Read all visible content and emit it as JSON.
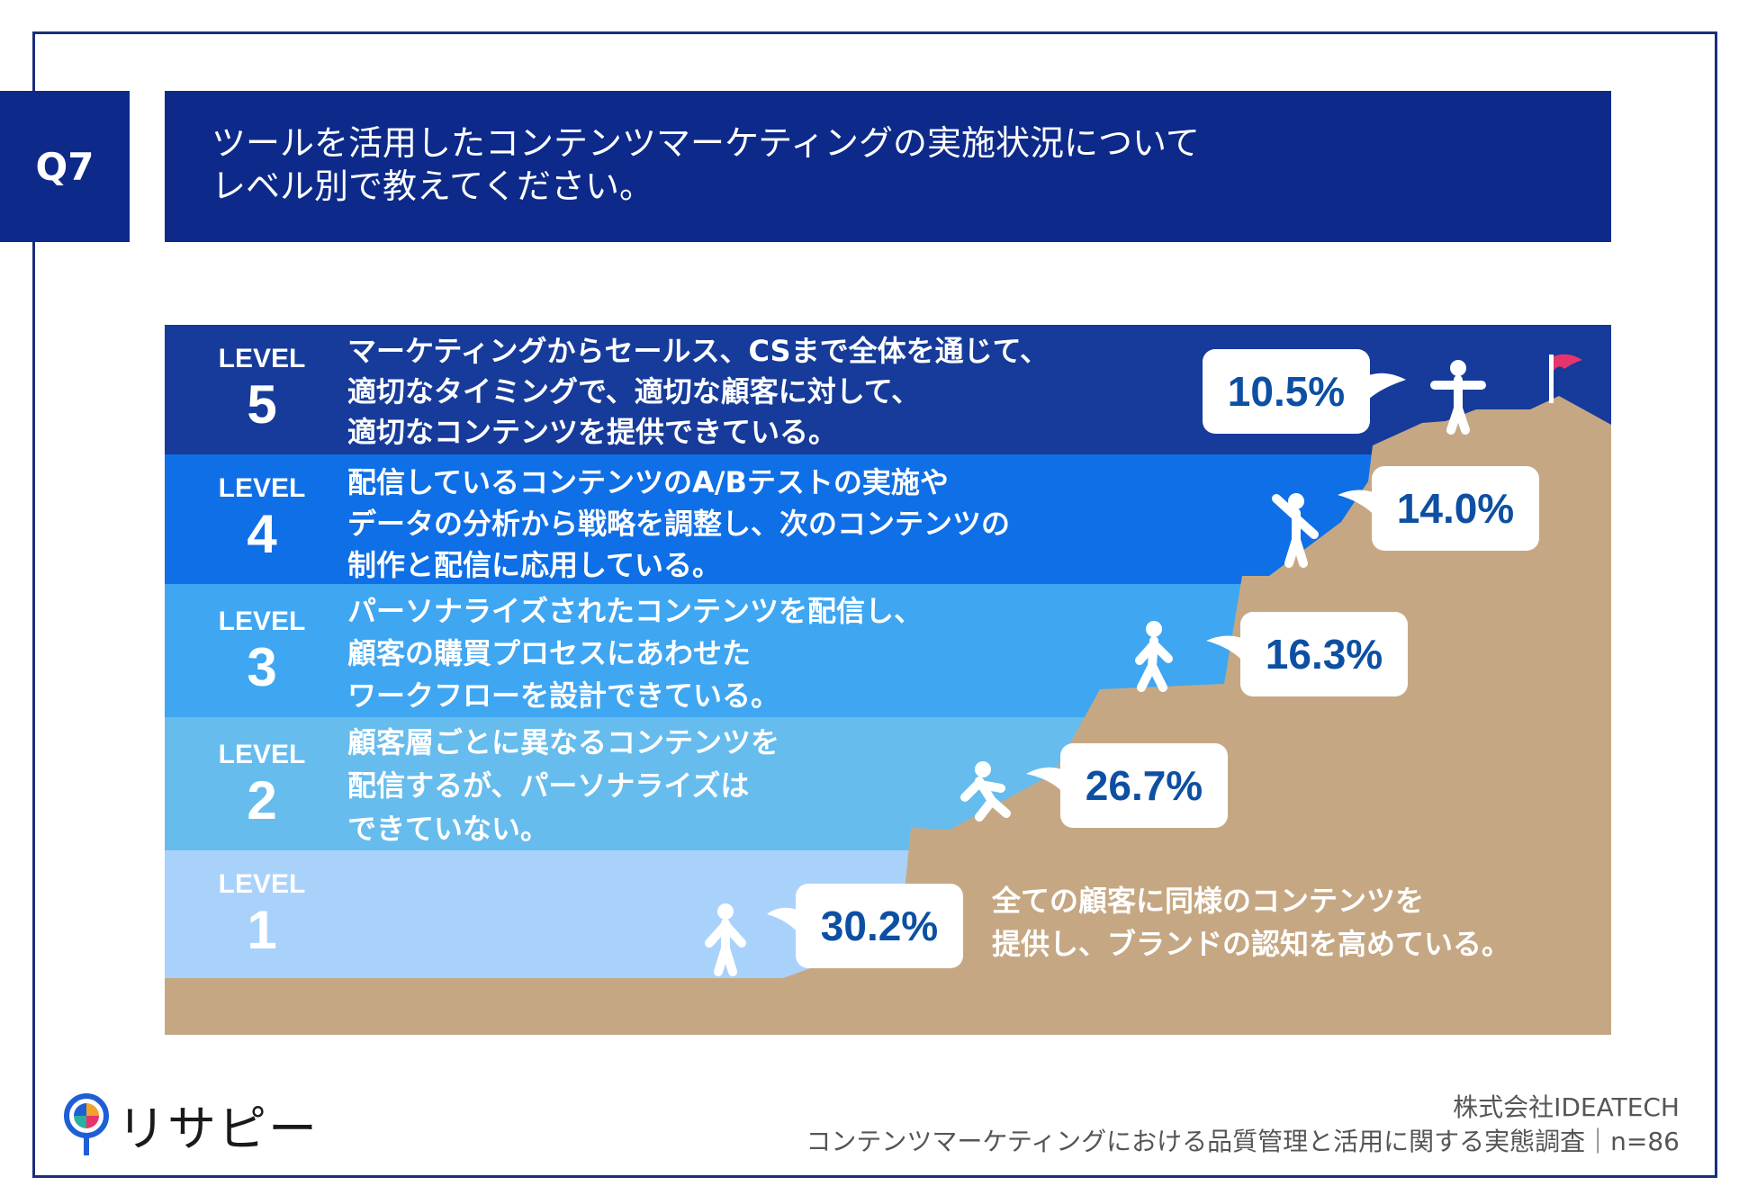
{
  "question": {
    "badge": "Q7",
    "lines": [
      "ツールを活用したコンテンツマーケティングの実施状況について",
      "レベル別で教えてください。"
    ]
  },
  "chart_data": {
    "type": "bar",
    "title": "ツールを活用したコンテンツマーケティングの実施状況について レベル別で教えてください。",
    "unit": "%",
    "n": 86,
    "categories": [
      "LEVEL 1",
      "LEVEL 2",
      "LEVEL 3",
      "LEVEL 4",
      "LEVEL 5"
    ],
    "values": [
      30.2,
      26.7,
      16.3,
      14.0,
      10.5
    ],
    "levels": [
      {
        "label": "LEVEL",
        "number": "1",
        "value": 30.2,
        "value_label": "30.2%",
        "color": "#a9d2fb",
        "desc": [
          "全ての顧客に同様のコンテンツを",
          "提供し、ブランドの認知を高めている。"
        ]
      },
      {
        "label": "LEVEL",
        "number": "2",
        "value": 26.7,
        "value_label": "26.7%",
        "color": "#66bced",
        "desc": [
          "顧客層ごとに異なるコンテンツを",
          "配信するが、パーソナライズは",
          "できていない。"
        ]
      },
      {
        "label": "LEVEL",
        "number": "3",
        "value": 16.3,
        "value_label": "16.3%",
        "color": "#3fa6f2",
        "desc": [
          "パーソナライズされたコンテンツを配信し、",
          "顧客の購買プロセスにあわせた",
          "ワークフローを設計できている。"
        ]
      },
      {
        "label": "LEVEL",
        "number": "4",
        "value": 14.0,
        "value_label": "14.0%",
        "color": "#0f6fe6",
        "desc": [
          "配信しているコンテンツのA/Bテストの実施や",
          "データの分析から戦略を調整し、次のコンテンツの",
          "制作と配信に応用している。"
        ]
      },
      {
        "label": "LEVEL",
        "number": "5",
        "value": 10.5,
        "value_label": "10.5%",
        "color": "#163b9a",
        "desc": [
          "マーケティングからセールス、CSまで全体を通じて、",
          "適切なタイミングで、適切な顧客に対して、",
          "適切なコンテンツを提供できている。"
        ]
      }
    ],
    "colors": {
      "mountain": "#c5a883",
      "bubble": "#ffffff",
      "flag": "#e8336d",
      "text_value": "#0d4fa3"
    }
  },
  "logo": {
    "text": "リサピー"
  },
  "footer": {
    "company": "株式会社IDEATECH",
    "survey": "コンテンツマーケティングにおける品質管理と活用に関する実態調査｜n=86"
  }
}
